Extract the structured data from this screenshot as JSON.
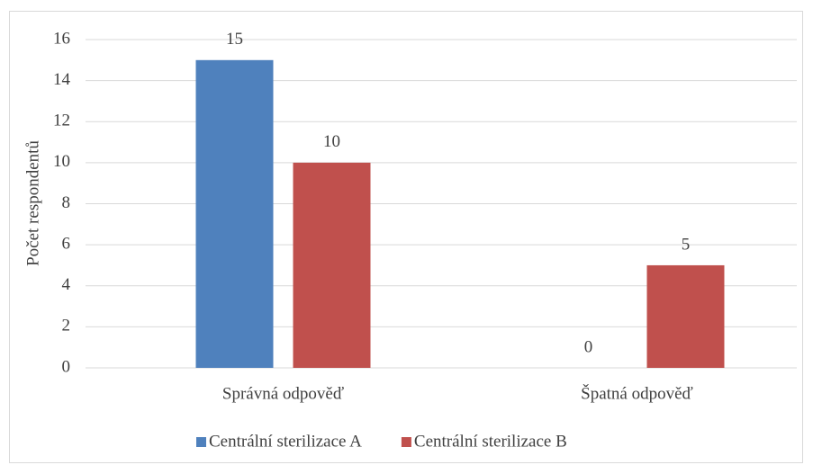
{
  "chart_data": {
    "type": "bar",
    "y_label": "Počet respondentů",
    "categories": [
      "Správná odpověď",
      "Špatná odpověď"
    ],
    "series": [
      {
        "name": "Centrální sterilizace A",
        "color": "#4f81bd",
        "values": [
          15,
          0
        ]
      },
      {
        "name": "Centrální sterilizace B",
        "color": "#c0504d",
        "values": [
          10,
          5
        ]
      }
    ],
    "ylim": [
      0,
      16
    ],
    "yticks": [
      0,
      2,
      4,
      6,
      8,
      10,
      12,
      14,
      16
    ],
    "grid": true,
    "legend": "bottom"
  }
}
